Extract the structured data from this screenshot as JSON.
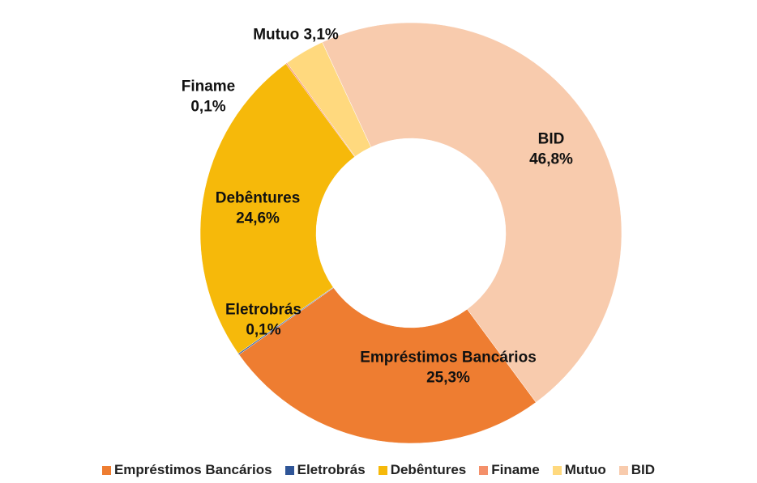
{
  "chart_data": {
    "type": "donut",
    "categories": [
      "Empréstimos Bancários",
      "Eletrobrás",
      "Debêntures",
      "Finame",
      "Mutuo",
      "BID"
    ],
    "values": [
      25.3,
      0.1,
      24.6,
      0.1,
      3.1,
      46.8
    ],
    "value_labels": [
      "25,3%",
      "0,1%",
      "24,6%",
      "0,1%",
      "3,1%",
      "46,8%"
    ],
    "colors": [
      "#ee7d31",
      "#2f5597",
      "#f6b90a",
      "#f4906a",
      "#ffd97e",
      "#f8cbad"
    ],
    "legend": "bottom"
  }
}
